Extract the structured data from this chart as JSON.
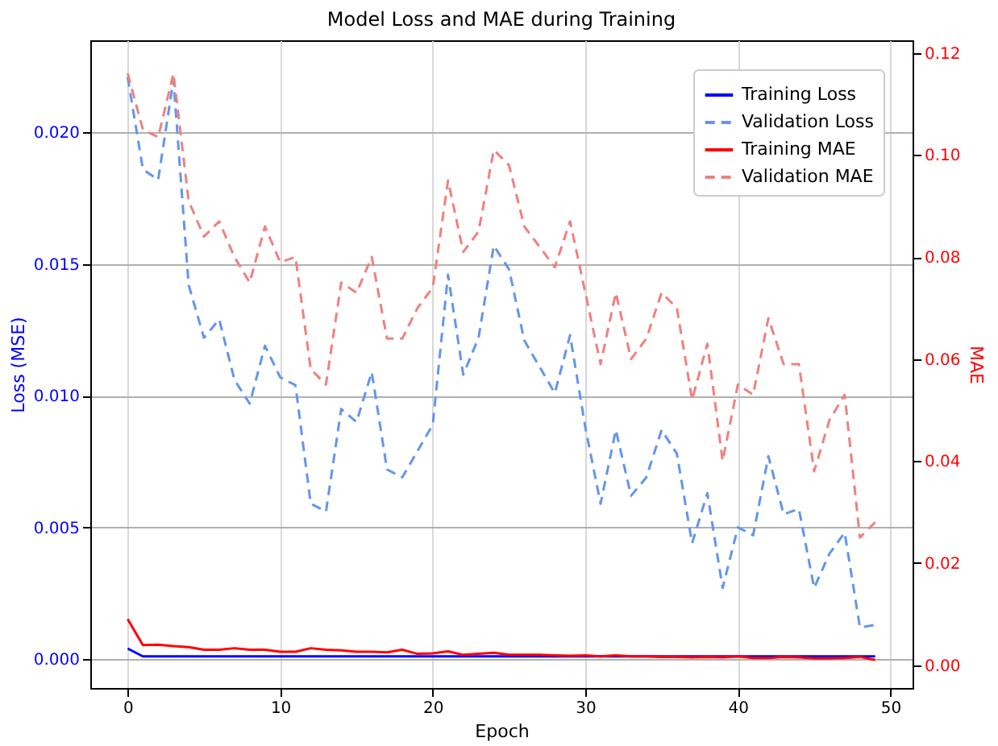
{
  "chart_data": {
    "type": "line",
    "title": "Model Loss and MAE during Training",
    "xlabel": "Epoch",
    "ylabel": "Loss (MSE)",
    "y2label": "MAE",
    "x": [
      0,
      1,
      2,
      3,
      4,
      5,
      6,
      7,
      8,
      9,
      10,
      11,
      12,
      13,
      14,
      15,
      16,
      17,
      18,
      19,
      20,
      21,
      22,
      23,
      24,
      25,
      26,
      27,
      28,
      29,
      30,
      31,
      32,
      33,
      34,
      35,
      36,
      37,
      38,
      39,
      40,
      41,
      42,
      43,
      44,
      45,
      46,
      47,
      48,
      49
    ],
    "series": [
      {
        "name": "Training Loss",
        "color": "#0000ff",
        "line_style": "solid",
        "values": [
          0.0004,
          0.0001,
          0.0001,
          0.0001,
          0.0001,
          0.0001,
          0.0001,
          0.0001,
          0.0001,
          0.0001,
          0.0001,
          0.0001,
          0.0001,
          0.0001,
          0.0001,
          0.0001,
          0.0001,
          0.0001,
          0.0001,
          0.0001,
          0.0001,
          0.0001,
          0.0001,
          0.0001,
          0.0001,
          0.0001,
          0.0001,
          0.0001,
          0.0001,
          0.0001,
          0.0001,
          0.0001,
          0.0001,
          0.0001,
          0.0001,
          0.0001,
          0.0001,
          0.0001,
          0.0001,
          0.0001,
          0.0001,
          0.0001,
          0.0001,
          0.0001,
          0.0001,
          0.0001,
          0.0001,
          0.0001,
          0.0001,
          0.0001
        ]
      },
      {
        "name": "Validation Loss",
        "color": "#6495ed",
        "line_style": "dashed",
        "values": [
          0.0221,
          0.0186,
          0.0182,
          0.022,
          0.0142,
          0.0122,
          0.0129,
          0.0106,
          0.0097,
          0.0119,
          0.0107,
          0.0104,
          0.0059,
          0.0056,
          0.0095,
          0.009,
          0.0109,
          0.0072,
          0.0069,
          0.0079,
          0.0089,
          0.0146,
          0.0108,
          0.0122,
          0.0157,
          0.0148,
          0.0121,
          0.0111,
          0.0101,
          0.0123,
          0.0088,
          0.0059,
          0.0087,
          0.0062,
          0.0069,
          0.0087,
          0.0078,
          0.0044,
          0.0063,
          0.0027,
          0.005,
          0.0047,
          0.0077,
          0.0055,
          0.0057,
          0.0027,
          0.004,
          0.0048,
          0.0012,
          0.0013
        ]
      },
      {
        "name": "Training MAE",
        "color": "#ff0000",
        "line_style": "solid",
        "axis": "y2",
        "values": [
          0.009,
          0.0039,
          0.004,
          0.0037,
          0.0035,
          0.003,
          0.003,
          0.0033,
          0.003,
          0.003,
          0.0026,
          0.0026,
          0.0033,
          0.003,
          0.0029,
          0.0026,
          0.0026,
          0.0025,
          0.003,
          0.0022,
          0.0023,
          0.0027,
          0.002,
          0.0022,
          0.0024,
          0.002,
          0.002,
          0.002,
          0.0019,
          0.0018,
          0.0019,
          0.0017,
          0.0019,
          0.0017,
          0.0017,
          0.0016,
          0.0016,
          0.0015,
          0.0016,
          0.0015,
          0.0017,
          0.0014,
          0.0014,
          0.0016,
          0.0015,
          0.0013,
          0.0013,
          0.0014,
          0.0016,
          0.001
        ]
      },
      {
        "name": "Validation MAE",
        "color": "#f08080",
        "line_style": "dashed",
        "axis": "y2",
        "values": [
          0.116,
          0.105,
          0.1035,
          0.116,
          0.091,
          0.084,
          0.087,
          0.08,
          0.075,
          0.086,
          0.079,
          0.08,
          0.058,
          0.055,
          0.075,
          0.073,
          0.08,
          0.064,
          0.064,
          0.07,
          0.074,
          0.095,
          0.081,
          0.085,
          0.101,
          0.098,
          0.086,
          0.082,
          0.078,
          0.087,
          0.073,
          0.059,
          0.073,
          0.06,
          0.064,
          0.073,
          0.07,
          0.052,
          0.063,
          0.04,
          0.055,
          0.053,
          0.068,
          0.059,
          0.059,
          0.038,
          0.048,
          0.053,
          0.025,
          0.028
        ]
      }
    ],
    "xlim": [
      -2.45,
      51.45
    ],
    "xticks": [
      0,
      10,
      20,
      30,
      40,
      50
    ],
    "ylim": [
      -0.0011,
      0.0235
    ],
    "yticks": [
      {
        "value": 0,
        "label": "0.000"
      },
      {
        "value": 0.005,
        "label": "0.005"
      },
      {
        "value": 0.01,
        "label": "0.010"
      },
      {
        "value": 0.015,
        "label": "0.015"
      },
      {
        "value": 0.02,
        "label": "0.020"
      }
    ],
    "y2lim": [
      -0.0045,
      0.1225
    ],
    "y2ticks": [
      {
        "value": 0,
        "label": "0.00"
      },
      {
        "value": 0.02,
        "label": "0.02"
      },
      {
        "value": 0.04,
        "label": "0.04"
      },
      {
        "value": 0.06,
        "label": "0.06"
      },
      {
        "value": 0.08,
        "label": "0.08"
      },
      {
        "value": 0.1,
        "label": "0.10"
      },
      {
        "value": 0.12,
        "label": "0.12"
      }
    ],
    "grid": true,
    "legend": "top right"
  }
}
